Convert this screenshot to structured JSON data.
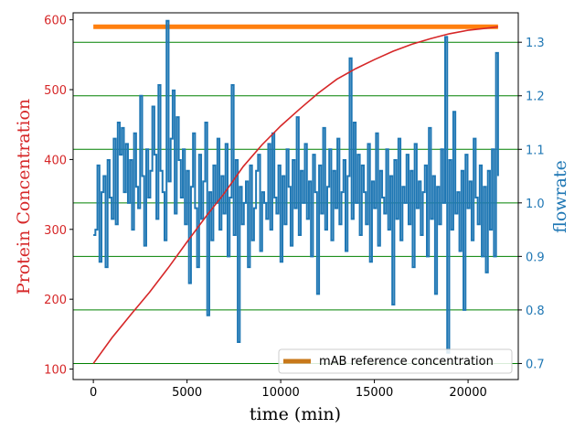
{
  "chart_data": {
    "type": "line",
    "xlabel": "time (min)",
    "ylabel_left": "Protein Concentration",
    "ylabel_right": "flowrate",
    "xlim": [
      -1080,
      22680
    ],
    "ylim_left": [
      85,
      610
    ],
    "ylim_right": [
      0.67,
      1.355
    ],
    "x_ticks": [
      0,
      5000,
      10000,
      15000,
      20000
    ],
    "y_left_ticks": [
      100,
      200,
      300,
      400,
      500,
      600
    ],
    "y_right_ticks": [
      0.7,
      0.8,
      0.9,
      1.0,
      1.1,
      1.2,
      1.3
    ],
    "y_left_tick_labels": [
      "100",
      "200",
      "300",
      "400",
      "500",
      "600"
    ],
    "y_right_tick_labels": [
      "0.7",
      "0.8",
      "0.9",
      "1.0",
      "1.1",
      "1.2",
      "1.3"
    ],
    "grid": "horizontal, right axis ticks",
    "colors": {
      "left_axis": "#d62728",
      "right_axis": "#1f77b4",
      "concentration_line": "#d62728",
      "flowrate_line": "#1f77b4",
      "reference_line": "#ff7f0e",
      "reference_legend": "#c8781a",
      "grid": "#008000"
    },
    "reference": {
      "name": "mAB reference concentration",
      "value": 590,
      "x_start": 0,
      "x_end": 21600
    },
    "legend": {
      "placement": "lower-right"
    },
    "concentration_series": {
      "x": [
        0,
        1000,
        2000,
        3000,
        4000,
        5000,
        6000,
        7000,
        8000,
        9000,
        10000,
        11000,
        12000,
        13000,
        14000,
        15000,
        16000,
        17000,
        18000,
        19000,
        20000,
        21000,
        21600
      ],
      "y": [
        108,
        145,
        178,
        210,
        245,
        282,
        318,
        352,
        390,
        421,
        448,
        472,
        495,
        515,
        530,
        543,
        555,
        565,
        573,
        580,
        585,
        588,
        590
      ]
    },
    "flowrate_series": {
      "x_start": 0,
      "x_end": 21600,
      "values": [
        0.94,
        0.95,
        1.07,
        0.89,
        1.02,
        1.05,
        0.88,
        1.08,
        1.01,
        0.97,
        1.12,
        0.96,
        1.15,
        1.09,
        1.14,
        1.02,
        1.11,
        1.0,
        1.08,
        0.95,
        1.13,
        1.03,
        0.99,
        1.2,
        1.05,
        0.92,
        1.1,
        1.01,
        1.06,
        1.18,
        1.09,
        0.97,
        1.22,
        1.06,
        1.02,
        0.93,
        1.34,
        1.04,
        1.12,
        1.21,
        0.98,
        1.16,
        1.08,
        1.01,
        1.1,
        0.96,
        1.06,
        0.85,
        1.03,
        1.13,
        0.99,
        0.88,
        1.09,
        0.97,
        1.04,
        1.15,
        0.79,
        1.02,
        0.93,
        1.07,
        1.0,
        1.12,
        0.95,
        1.05,
        0.98,
        1.11,
        0.9,
        1.01,
        1.22,
        0.94,
        1.08,
        0.74,
        1.03,
        0.96,
        1.0,
        1.04,
        0.88,
        1.07,
        0.93,
        0.99,
        1.06,
        1.09,
        0.91,
        1.02,
        1.0,
        0.97,
        1.11,
        0.95,
        1.13,
        1.01,
        0.98,
        1.07,
        0.89,
        1.05,
        0.96,
        1.1,
        1.03,
        0.92,
        1.08,
        0.99,
        1.16,
        0.94,
        1.06,
        1.0,
        1.11,
        0.97,
        1.04,
        0.9,
        1.09,
        1.02,
        0.83,
        1.07,
        0.98,
        1.14,
        0.95,
        1.03,
        1.1,
        0.93,
        1.06,
        0.99,
        1.12,
        0.96,
        1.02,
        1.08,
        0.91,
        1.05,
        1.27,
        0.97,
        1.15,
        1.0,
        1.09,
        0.94,
        1.07,
        1.02,
        0.96,
        1.11,
        0.89,
        1.04,
        0.99,
        1.13,
        0.92,
        1.06,
        1.01,
        0.98,
        1.1,
        0.95,
        1.05,
        0.81,
        1.08,
        0.97,
        1.12,
        0.93,
        1.03,
        1.0,
        1.09,
        0.96,
        1.06,
        0.88,
        1.11,
        0.99,
        1.04,
        0.94,
        1.02,
        1.07,
        0.9,
        1.14,
        0.97,
        1.05,
        0.83,
        1.03,
        0.96,
        1.1,
        1.0,
        1.31,
        0.72,
        1.08,
        0.95,
        1.17,
        0.98,
        1.02,
        0.91,
        1.06,
        0.8,
        1.09,
        0.99,
        1.04,
        0.93,
        1.12,
        1.01,
        0.96,
        1.07,
        0.9,
        1.03,
        0.87,
        1.06,
        0.95,
        1.1,
        0.9,
        1.28,
        1.05
      ]
    }
  }
}
